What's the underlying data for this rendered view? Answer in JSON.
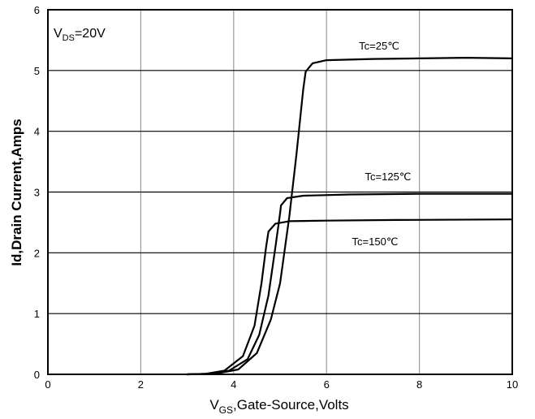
{
  "chart_data": {
    "type": "line",
    "title": "",
    "annotation_main": "V",
    "annotation_sub": "DS",
    "annotation_rest": "=20V",
    "xlabel_main": "V",
    "xlabel_sub": "GS",
    "xlabel_rest": ",Gate-Source,Volts",
    "ylabel": "Id,Drain Current,Amps",
    "xlim": [
      0,
      10
    ],
    "ylim": [
      0,
      6
    ],
    "xticks": [
      "0",
      "2",
      "4",
      "6",
      "8",
      "10"
    ],
    "yticks": [
      "0",
      "1",
      "2",
      "3",
      "4",
      "5",
      "6"
    ],
    "grid": true,
    "series": [
      {
        "name": "Tc=25℃",
        "points": [
          [
            3.0,
            0
          ],
          [
            3.6,
            0.01
          ],
          [
            4.1,
            0.08
          ],
          [
            4.5,
            0.35
          ],
          [
            4.8,
            0.9
          ],
          [
            5.0,
            1.5
          ],
          [
            5.2,
            2.6
          ],
          [
            5.35,
            3.6
          ],
          [
            5.5,
            4.7
          ],
          [
            5.55,
            4.98
          ],
          [
            5.7,
            5.12
          ],
          [
            6.0,
            5.17
          ],
          [
            7.0,
            5.19
          ],
          [
            8.0,
            5.2
          ],
          [
            9.0,
            5.21
          ],
          [
            10.0,
            5.2
          ]
        ]
      },
      {
        "name": "Tc=125℃",
        "points": [
          [
            3.0,
            0
          ],
          [
            3.5,
            0.01
          ],
          [
            3.9,
            0.06
          ],
          [
            4.3,
            0.25
          ],
          [
            4.55,
            0.65
          ],
          [
            4.75,
            1.3
          ],
          [
            4.9,
            2.1
          ],
          [
            5.0,
            2.65
          ],
          [
            5.02,
            2.78
          ],
          [
            5.15,
            2.9
          ],
          [
            5.5,
            2.94
          ],
          [
            6.5,
            2.96
          ],
          [
            8.0,
            2.97
          ],
          [
            10.0,
            2.97
          ]
        ]
      },
      {
        "name": "Tc=150℃",
        "points": [
          [
            3.0,
            0
          ],
          [
            3.4,
            0.01
          ],
          [
            3.8,
            0.06
          ],
          [
            4.2,
            0.3
          ],
          [
            4.45,
            0.8
          ],
          [
            4.6,
            1.5
          ],
          [
            4.7,
            2.1
          ],
          [
            4.75,
            2.35
          ],
          [
            4.9,
            2.48
          ],
          [
            5.2,
            2.52
          ],
          [
            6.0,
            2.53
          ],
          [
            7.5,
            2.54
          ],
          [
            10.0,
            2.55
          ]
        ]
      }
    ],
    "line_color": "#000000",
    "grid_color": "#999999"
  }
}
